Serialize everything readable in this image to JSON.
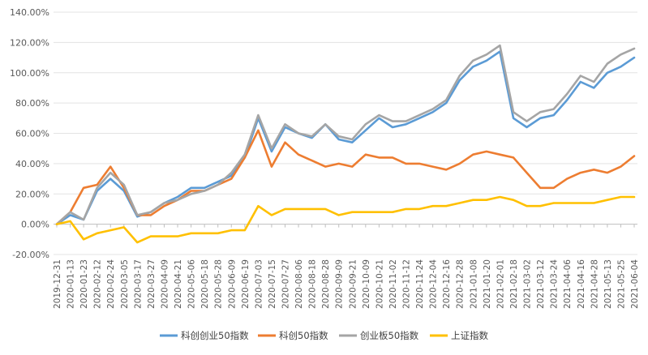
{
  "chart_data": {
    "type": "line",
    "title": "",
    "xlabel": "",
    "ylabel": "",
    "ylim": [
      -20,
      140
    ],
    "y_ticks": [
      -20,
      0,
      20,
      40,
      60,
      80,
      100,
      120,
      140
    ],
    "y_tick_labels": [
      "-20.00%",
      "0.00%",
      "20.00%",
      "40.00%",
      "60.00%",
      "80.00%",
      "100.00%",
      "120.00%",
      "140.00%"
    ],
    "grid": "horizontal",
    "legend_position": "bottom",
    "x": [
      "2019-12-31",
      "2020-01-13",
      "2020-01-23",
      "2020-02-12",
      "2020-02-24",
      "2020-03-05",
      "2020-03-17",
      "2020-03-27",
      "2020-04-09",
      "2020-04-21",
      "2020-05-06",
      "2020-05-18",
      "2020-05-28",
      "2020-06-09",
      "2020-06-19",
      "2020-07-03",
      "2020-07-15",
      "2020-07-27",
      "2020-08-06",
      "2020-08-18",
      "2020-08-28",
      "2020-09-09",
      "2020-09-21",
      "2020-10-09",
      "2020-10-21",
      "2020-11-02",
      "2020-11-12",
      "2020-11-24",
      "2020-12-04",
      "2020-12-16",
      "2020-12-28",
      "2021-01-08",
      "2021-01-20",
      "2021-02-01",
      "2021-02-18",
      "2021-03-02",
      "2021-03-12",
      "2021-03-24",
      "2021-04-06",
      "2021-04-16",
      "2021-04-28",
      "2021-05-13",
      "2021-05-25",
      "2021-06-04"
    ],
    "series": [
      {
        "name": "科创创业50指数",
        "color": "#5B9BD5",
        "values": [
          0,
          6,
          3,
          22,
          30,
          22,
          5,
          8,
          14,
          18,
          24,
          24,
          28,
          32,
          44,
          70,
          48,
          64,
          60,
          57,
          66,
          56,
          54,
          62,
          70,
          64,
          66,
          70,
          74,
          80,
          95,
          104,
          108,
          114,
          70,
          64,
          70,
          72,
          82,
          94,
          90,
          100,
          104,
          110
        ]
      },
      {
        "name": "科创50指数",
        "color": "#ED7D31",
        "values": [
          0,
          8,
          24,
          26,
          38,
          24,
          6,
          6,
          12,
          16,
          22,
          22,
          26,
          30,
          44,
          62,
          38,
          54,
          46,
          42,
          38,
          40,
          38,
          46,
          44,
          44,
          40,
          40,
          38,
          36,
          40,
          46,
          48,
          46,
          44,
          34,
          24,
          24,
          30,
          34,
          36,
          34,
          38,
          45
        ]
      },
      {
        "name": "创业板50指数",
        "color": "#A5A5A5",
        "values": [
          0,
          8,
          3,
          24,
          34,
          26,
          6,
          8,
          14,
          16,
          20,
          22,
          26,
          34,
          46,
          72,
          50,
          66,
          60,
          58,
          66,
          58,
          56,
          66,
          72,
          68,
          68,
          72,
          76,
          82,
          98,
          108,
          112,
          118,
          74,
          68,
          74,
          76,
          86,
          98,
          94,
          106,
          112,
          116
        ]
      },
      {
        "name": "上证指数",
        "color": "#FFC000",
        "values": [
          0,
          2,
          -10,
          -6,
          -4,
          -2,
          -12,
          -8,
          -8,
          -8,
          -6,
          -6,
          -6,
          -4,
          -4,
          12,
          6,
          10,
          10,
          10,
          10,
          6,
          8,
          8,
          8,
          8,
          10,
          10,
          12,
          12,
          14,
          16,
          16,
          18,
          16,
          12,
          12,
          14,
          14,
          14,
          14,
          16,
          18,
          18
        ]
      }
    ]
  }
}
